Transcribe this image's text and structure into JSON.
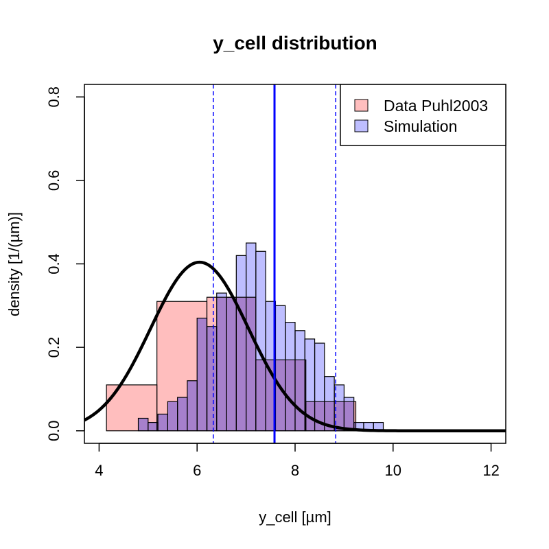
{
  "chart_data": {
    "type": "histogram",
    "title": "y_cell distribution",
    "xlabel": "y_cell [µm]",
    "ylabel": "density [1/(µm)]",
    "xlim": [
      3.7,
      12.3
    ],
    "ylim": [
      -0.03,
      0.83
    ],
    "x_ticks": [
      4,
      6,
      8,
      10,
      12
    ],
    "y_ticks": [
      0.0,
      0.2,
      0.4,
      0.6,
      0.8
    ],
    "x_tick_labels": [
      "4",
      "6",
      "8",
      "10",
      "12"
    ],
    "y_tick_labels": [
      "0.0",
      "0.2",
      "0.4",
      "0.6",
      "0.8"
    ],
    "grid": false,
    "legend_position": "top-right",
    "series": [
      {
        "name": "Data Puhl2003",
        "color": "#ffbebe",
        "bins": [
          {
            "x0": 4.15,
            "x1": 5.18,
            "y": 0.11
          },
          {
            "x0": 5.18,
            "x1": 6.2,
            "y": 0.31
          },
          {
            "x0": 6.2,
            "x1": 7.2,
            "y": 0.32
          },
          {
            "x0": 7.2,
            "x1": 8.22,
            "y": 0.17
          },
          {
            "x0": 8.22,
            "x1": 9.24,
            "y": 0.07
          }
        ]
      },
      {
        "name": "Simulation",
        "color": "#bebeff",
        "bin_start": 4.8,
        "bin_width": 0.2,
        "values": [
          0.03,
          0.02,
          0.04,
          0.07,
          0.08,
          0.12,
          0.27,
          0.25,
          0.33,
          0.32,
          0.42,
          0.45,
          0.43,
          0.31,
          0.3,
          0.26,
          0.24,
          0.22,
          0.21,
          0.13,
          0.11,
          0.08,
          0.02,
          0.02,
          0.02
        ]
      }
    ],
    "overlap_color": "#a680cc",
    "density_curve": {
      "color": "#000000",
      "mu": 6.05,
      "sigma": 1.0,
      "peak": 0.404
    },
    "vlines": [
      {
        "x": 7.58,
        "style": "solid",
        "color": "#0000ff"
      },
      {
        "x": 6.33,
        "style": "dashed",
        "color": "#0000ff"
      },
      {
        "x": 8.83,
        "style": "dashed",
        "color": "#0000ff"
      }
    ]
  }
}
